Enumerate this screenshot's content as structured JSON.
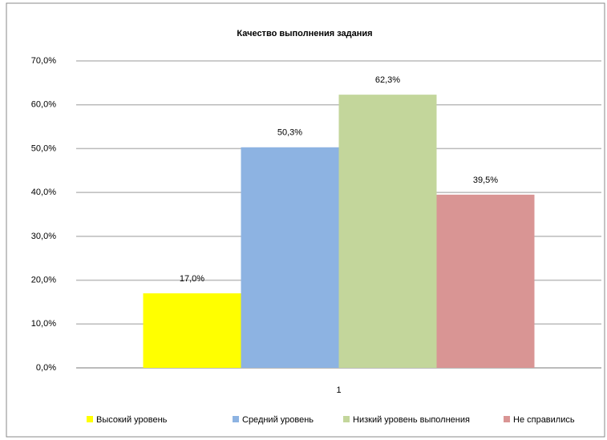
{
  "chart_data": {
    "type": "bar",
    "title": "Качество выполнения задания",
    "categories": [
      "1"
    ],
    "series": [
      {
        "name": "Высокий уровень",
        "color": "#ffff00",
        "values": [
          17.0
        ],
        "value_labels": [
          "17,0%"
        ]
      },
      {
        "name": "Средний уровень",
        "color": "#8db3e2",
        "values": [
          50.3
        ],
        "value_labels": [
          "50,3%"
        ]
      },
      {
        "name": "Низкий уровень выполнения",
        "color": "#c3d69b",
        "values": [
          62.3
        ],
        "value_labels": [
          "62,3%"
        ]
      },
      {
        "name": "Не справились",
        "color": "#d99594",
        "values": [
          39.5
        ],
        "value_labels": [
          "39,5%"
        ]
      }
    ],
    "ylim": [
      0,
      70
    ],
    "yticks": [
      {
        "value": 0,
        "label": "0,0%"
      },
      {
        "value": 10,
        "label": "10,0%"
      },
      {
        "value": 20,
        "label": "20,0%"
      },
      {
        "value": 30,
        "label": "30,0%"
      },
      {
        "value": 40,
        "label": "40,0%"
      },
      {
        "value": 50,
        "label": "50,0%"
      },
      {
        "value": 60,
        "label": "60,0%"
      },
      {
        "value": 70,
        "label": "70,0%"
      }
    ],
    "grid": true
  }
}
